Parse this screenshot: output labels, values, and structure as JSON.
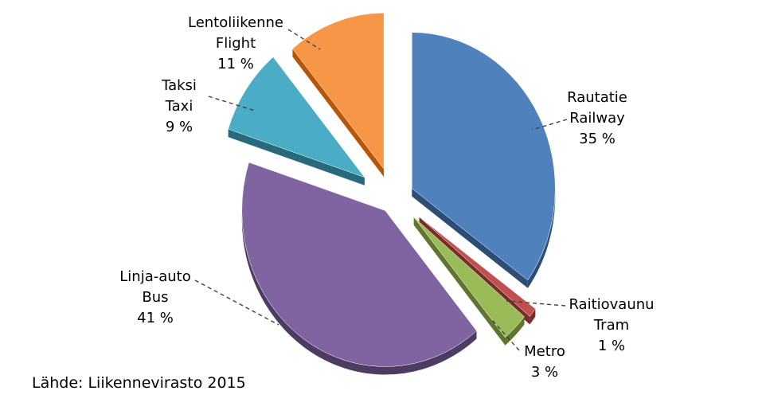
{
  "chart_data": {
    "type": "pie",
    "title": "",
    "exploded": true,
    "style_3d": true,
    "slices": [
      {
        "label_fi": "Rautatie",
        "label_en": "Railway",
        "value": 35,
        "value_label": "35 %",
        "color": "#4f81bd",
        "side_color": "#2c4d75"
      },
      {
        "label_fi": "Raitiovaunu",
        "label_en": "Tram",
        "value": 1,
        "value_label": "1 %",
        "color": "#c0504d",
        "side_color": "#772c2a"
      },
      {
        "label_fi": "Metro",
        "label_en": "",
        "value": 3,
        "value_label": "3 %",
        "color": "#9bbb59",
        "side_color": "#5f7530"
      },
      {
        "label_fi": "Linja-auto",
        "label_en": "Bus",
        "value": 41,
        "value_label": "41 %",
        "color": "#8064a2",
        "side_color": "#4d3b62"
      },
      {
        "label_fi": "Taksi",
        "label_en": "Taxi",
        "value": 9,
        "value_label": "9 %",
        "color": "#4bacc6",
        "side_color": "#276a7c"
      },
      {
        "label_fi": "Lentoliikenne",
        "label_en": "Flight",
        "value": 11,
        "value_label": "11 %",
        "color": "#f79646",
        "side_color": "#b65708"
      }
    ]
  },
  "source": "Lähde: Liikennevirasto 2015"
}
